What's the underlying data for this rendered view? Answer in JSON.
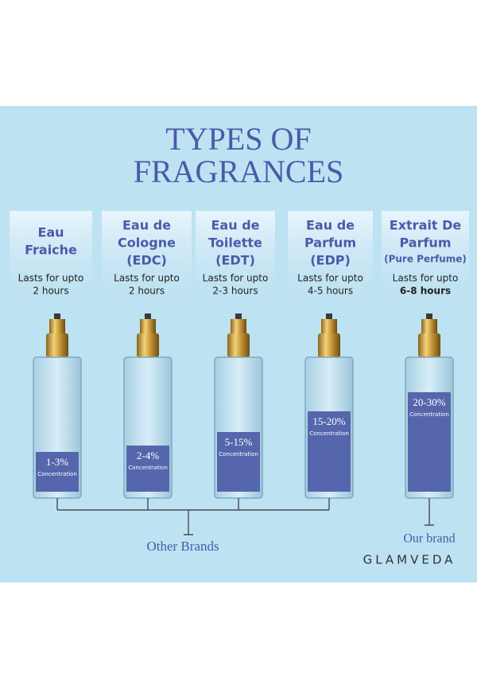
{
  "header": {
    "title": [
      "TYPES OF",
      "FRAGRANCES"
    ]
  },
  "columns": [
    {
      "title": [
        "Eau",
        "Fraiche"
      ],
      "lasts": "Lasts for upto",
      "duration": "2 hours",
      "range": "1-3%",
      "unit": "Concentration"
    },
    {
      "title": [
        "Eau de",
        "Cologne",
        "(EDC)"
      ],
      "lasts": "Lasts for upto",
      "duration": "2 hours",
      "range": "2-4%",
      "unit": "Concentration"
    },
    {
      "title": [
        "Eau de",
        "Toilette",
        "(EDT)"
      ],
      "lasts": "Lasts for upto",
      "duration": "2-3 hours",
      "range": "5-15%",
      "unit": "Concentration"
    },
    {
      "title": [
        "Eau de",
        "Parfum",
        "(EDP)"
      ],
      "lasts": "Lasts for upto",
      "duration": "4-5 hours",
      "range": "15-20%",
      "unit": "Concentration"
    },
    {
      "title": [
        "Extrait De",
        "Parfum"
      ],
      "subtitle": "(Pure Perfume)",
      "lasts": "Lasts for upto",
      "duration": "6-8 hours",
      "range": "20-30%",
      "unit": "Concentration"
    }
  ],
  "footer": {
    "other": "Other Brands",
    "ours": "Our brand",
    "brand": "GLAMVEDA"
  }
}
